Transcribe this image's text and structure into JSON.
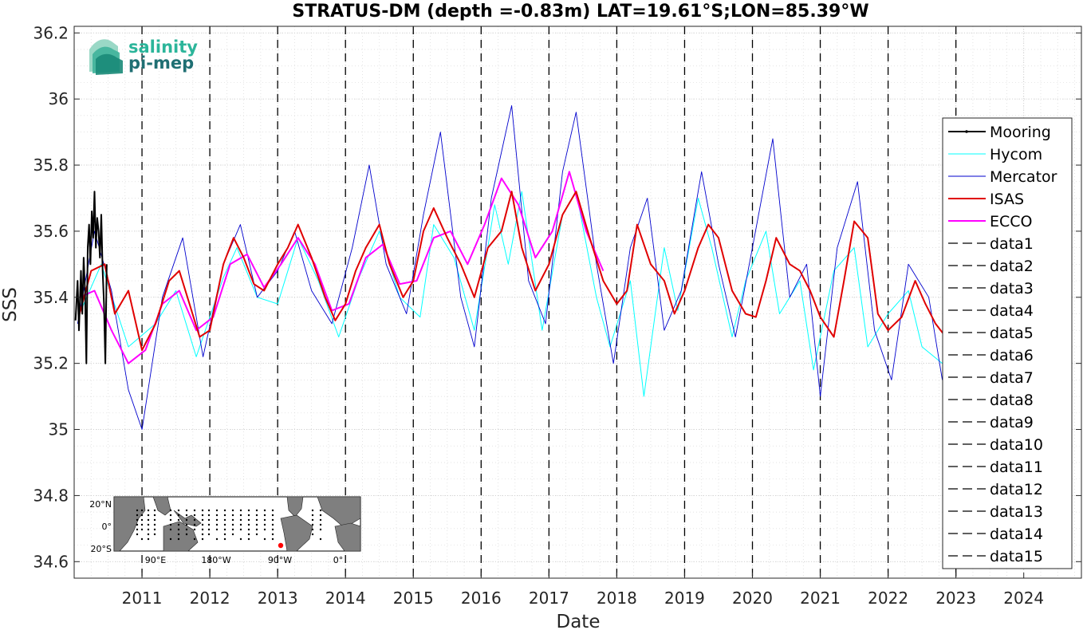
{
  "chart_data": {
    "type": "line",
    "title": "STRATUS-DM (depth =-0.83m) LAT=19.61°S;LON=85.39°W",
    "xlabel": "Date",
    "ylabel": "SSS",
    "xlim": [
      2010.0,
      2024.85
    ],
    "ylim": [
      34.55,
      36.22
    ],
    "yticks": [
      34.6,
      34.8,
      35,
      35.2,
      35.4,
      35.6,
      35.8,
      36,
      36.2
    ],
    "ytick_labels": [
      "34.6",
      "34.8",
      "35",
      "35.2",
      "35.4",
      "35.6",
      "35.8",
      "36",
      "36.2"
    ],
    "xticks": [
      2011,
      2012,
      2013,
      2014,
      2015,
      2016,
      2017,
      2018,
      2019,
      2020,
      2021,
      2022,
      2023,
      2024
    ],
    "xtick_labels": [
      "2011",
      "2012",
      "2013",
      "2014",
      "2015",
      "2016",
      "2017",
      "2018",
      "2019",
      "2020",
      "2021",
      "2022",
      "2023",
      "2024"
    ],
    "grid": true,
    "legend_position": "right",
    "series": [
      {
        "name": "Mooring",
        "color": "#000000",
        "x": [
          2010.02,
          2010.05,
          2010.07,
          2010.1,
          2010.12,
          2010.14,
          2010.16,
          2010.18,
          2010.2,
          2010.22,
          2010.24,
          2010.26,
          2010.28,
          2010.3,
          2010.32,
          2010.34,
          2010.36,
          2010.38,
          2010.4,
          2010.42,
          2010.44,
          2010.46,
          2010.48
        ],
        "values": [
          35.33,
          35.45,
          35.3,
          35.48,
          35.35,
          35.52,
          35.42,
          35.2,
          35.55,
          35.62,
          35.5,
          35.66,
          35.58,
          35.72,
          35.55,
          35.64,
          35.6,
          35.52,
          35.65,
          35.48,
          35.38,
          35.2,
          35.5
        ]
      },
      {
        "name": "Hycom",
        "color": "#00ffff",
        "x": [
          2010.1,
          2010.4,
          2010.8,
          2011.2,
          2011.5,
          2011.8,
          2012.2,
          2012.4,
          2012.7,
          2013.0,
          2013.3,
          2013.6,
          2013.9,
          2014.2,
          2014.5,
          2014.8,
          2015.1,
          2015.3,
          2015.6,
          2015.9,
          2016.2,
          2016.4,
          2016.6,
          2016.9,
          2017.2,
          2017.4,
          2017.7,
          2017.9,
          2018.2,
          2018.4,
          2018.7,
          2018.9,
          2019.2,
          2019.4,
          2019.7,
          2019.9,
          2020.2,
          2020.4,
          2020.7,
          2020.9,
          2021.2,
          2021.5,
          2021.7,
          2022.0,
          2022.3,
          2022.5,
          2022.8
        ],
        "values": [
          35.36,
          35.5,
          35.25,
          35.32,
          35.42,
          35.22,
          35.46,
          35.55,
          35.4,
          35.38,
          35.58,
          35.45,
          35.28,
          35.46,
          35.6,
          35.4,
          35.34,
          35.62,
          35.52,
          35.3,
          35.68,
          35.5,
          35.72,
          35.3,
          35.65,
          35.72,
          35.4,
          35.25,
          35.45,
          35.1,
          35.55,
          35.36,
          35.7,
          35.55,
          35.28,
          35.45,
          35.6,
          35.35,
          35.45,
          35.18,
          35.48,
          35.55,
          35.25,
          35.35,
          35.42,
          35.25,
          35.2
        ]
      },
      {
        "name": "Mercator",
        "color": "#0000cd",
        "x": [
          2010.05,
          2010.3,
          2010.55,
          2010.8,
          2011.0,
          2011.3,
          2011.6,
          2011.9,
          2012.2,
          2012.45,
          2012.7,
          2013.0,
          2013.25,
          2013.5,
          2013.8,
          2014.1,
          2014.35,
          2014.6,
          2014.9,
          2015.15,
          2015.4,
          2015.7,
          2015.9,
          2016.15,
          2016.45,
          2016.7,
          2016.95,
          2017.2,
          2017.4,
          2017.7,
          2017.95,
          2018.2,
          2018.45,
          2018.7,
          2018.95,
          2019.25,
          2019.5,
          2019.75,
          2020.0,
          2020.3,
          2020.55,
          2020.8,
          2021.0,
          2021.25,
          2021.55,
          2021.8,
          2022.05,
          2022.3,
          2022.6,
          2022.8
        ],
        "values": [
          35.32,
          35.6,
          35.42,
          35.12,
          35.0,
          35.4,
          35.58,
          35.22,
          35.5,
          35.62,
          35.4,
          35.48,
          35.6,
          35.42,
          35.32,
          35.55,
          35.8,
          35.5,
          35.35,
          35.65,
          35.9,
          35.4,
          35.25,
          35.7,
          35.98,
          35.45,
          35.32,
          35.78,
          35.96,
          35.5,
          35.2,
          35.55,
          35.7,
          35.3,
          35.42,
          35.78,
          35.5,
          35.28,
          35.55,
          35.88,
          35.4,
          35.5,
          35.1,
          35.55,
          35.75,
          35.3,
          35.15,
          35.5,
          35.4,
          35.15
        ]
      },
      {
        "name": "ISAS",
        "color": "#e00000",
        "x": [
          2010.08,
          2010.25,
          2010.45,
          2010.6,
          2010.8,
          2011.0,
          2011.2,
          2011.4,
          2011.55,
          2011.7,
          2011.85,
          2012.0,
          2012.2,
          2012.35,
          2012.5,
          2012.65,
          2012.8,
          2013.0,
          2013.15,
          2013.3,
          2013.5,
          2013.7,
          2013.85,
          2014.0,
          2014.15,
          2014.3,
          2014.5,
          2014.65,
          2014.85,
          2015.0,
          2015.15,
          2015.3,
          2015.5,
          2015.7,
          2015.9,
          2016.1,
          2016.3,
          2016.45,
          2016.6,
          2016.8,
          2017.0,
          2017.2,
          2017.4,
          2017.6,
          2017.8,
          2018.0,
          2018.15,
          2018.3,
          2018.5,
          2018.7,
          2018.85,
          2019.0,
          2019.2,
          2019.35,
          2019.5,
          2019.7,
          2019.9,
          2020.05,
          2020.2,
          2020.35,
          2020.55,
          2020.7,
          2020.85,
          2021.0,
          2021.2,
          2021.35,
          2021.5,
          2021.7,
          2021.85,
          2022.0,
          2022.2,
          2022.4,
          2022.55,
          2022.7,
          2022.85
        ],
        "values": [
          35.35,
          35.48,
          35.5,
          35.35,
          35.42,
          35.24,
          35.32,
          35.45,
          35.48,
          35.38,
          35.28,
          35.3,
          35.5,
          35.58,
          35.52,
          35.44,
          35.42,
          35.5,
          35.55,
          35.62,
          35.52,
          35.4,
          35.33,
          35.38,
          35.48,
          35.55,
          35.62,
          35.5,
          35.4,
          35.45,
          35.6,
          35.67,
          35.58,
          35.5,
          35.4,
          35.55,
          35.6,
          35.72,
          35.55,
          35.42,
          35.5,
          35.65,
          35.72,
          35.58,
          35.45,
          35.38,
          35.42,
          35.62,
          35.5,
          35.45,
          35.35,
          35.42,
          35.55,
          35.62,
          35.58,
          35.42,
          35.35,
          35.34,
          35.45,
          35.58,
          35.5,
          35.48,
          35.42,
          35.34,
          35.28,
          35.45,
          35.63,
          35.58,
          35.35,
          35.3,
          35.34,
          35.45,
          35.38,
          35.32,
          35.28
        ]
      },
      {
        "name": "ECCO",
        "color": "#ff00ff",
        "x": [
          2010.08,
          2010.3,
          2010.55,
          2010.8,
          2011.05,
          2011.3,
          2011.55,
          2011.8,
          2012.05,
          2012.3,
          2012.55,
          2012.8,
          2013.05,
          2013.3,
          2013.55,
          2013.8,
          2014.05,
          2014.3,
          2014.55,
          2014.8,
          2015.05,
          2015.3,
          2015.55,
          2015.8,
          2016.05,
          2016.3,
          2016.55,
          2016.8,
          2017.05,
          2017.3,
          2017.55,
          2017.8
        ],
        "values": [
          35.4,
          35.42,
          35.3,
          35.2,
          35.24,
          35.38,
          35.42,
          35.3,
          35.34,
          35.5,
          35.53,
          35.43,
          35.5,
          35.58,
          35.5,
          35.36,
          35.38,
          35.52,
          35.56,
          35.44,
          35.45,
          35.58,
          35.6,
          35.5,
          35.62,
          35.76,
          35.68,
          35.52,
          35.6,
          35.78,
          35.6,
          35.48
        ]
      }
    ],
    "legend_entries": [
      "Mooring",
      "Hycom",
      "Mercator",
      "ISAS",
      "ECCO",
      "data1",
      "data2",
      "data3",
      "data4",
      "data5",
      "data6",
      "data7",
      "data8",
      "data9",
      "data10",
      "data11",
      "data12",
      "data13",
      "data14",
      "data15"
    ],
    "vertical_lines": [
      2011,
      2012,
      2013,
      2014,
      2015,
      2016,
      2017,
      2018,
      2019,
      2020,
      2021,
      2022,
      2023
    ]
  },
  "logo": {
    "line1": "salinity",
    "line2": "pi-mep"
  },
  "inset_map": {
    "lat_labels": [
      "20°N",
      "0°",
      "20°S"
    ],
    "lon_labels": [
      "90°E",
      "180°W",
      "90°W",
      "0°"
    ],
    "colors": {
      "ocean": "#ffffff",
      "land": "#7f7f7f",
      "marker": "#ff0000"
    }
  }
}
